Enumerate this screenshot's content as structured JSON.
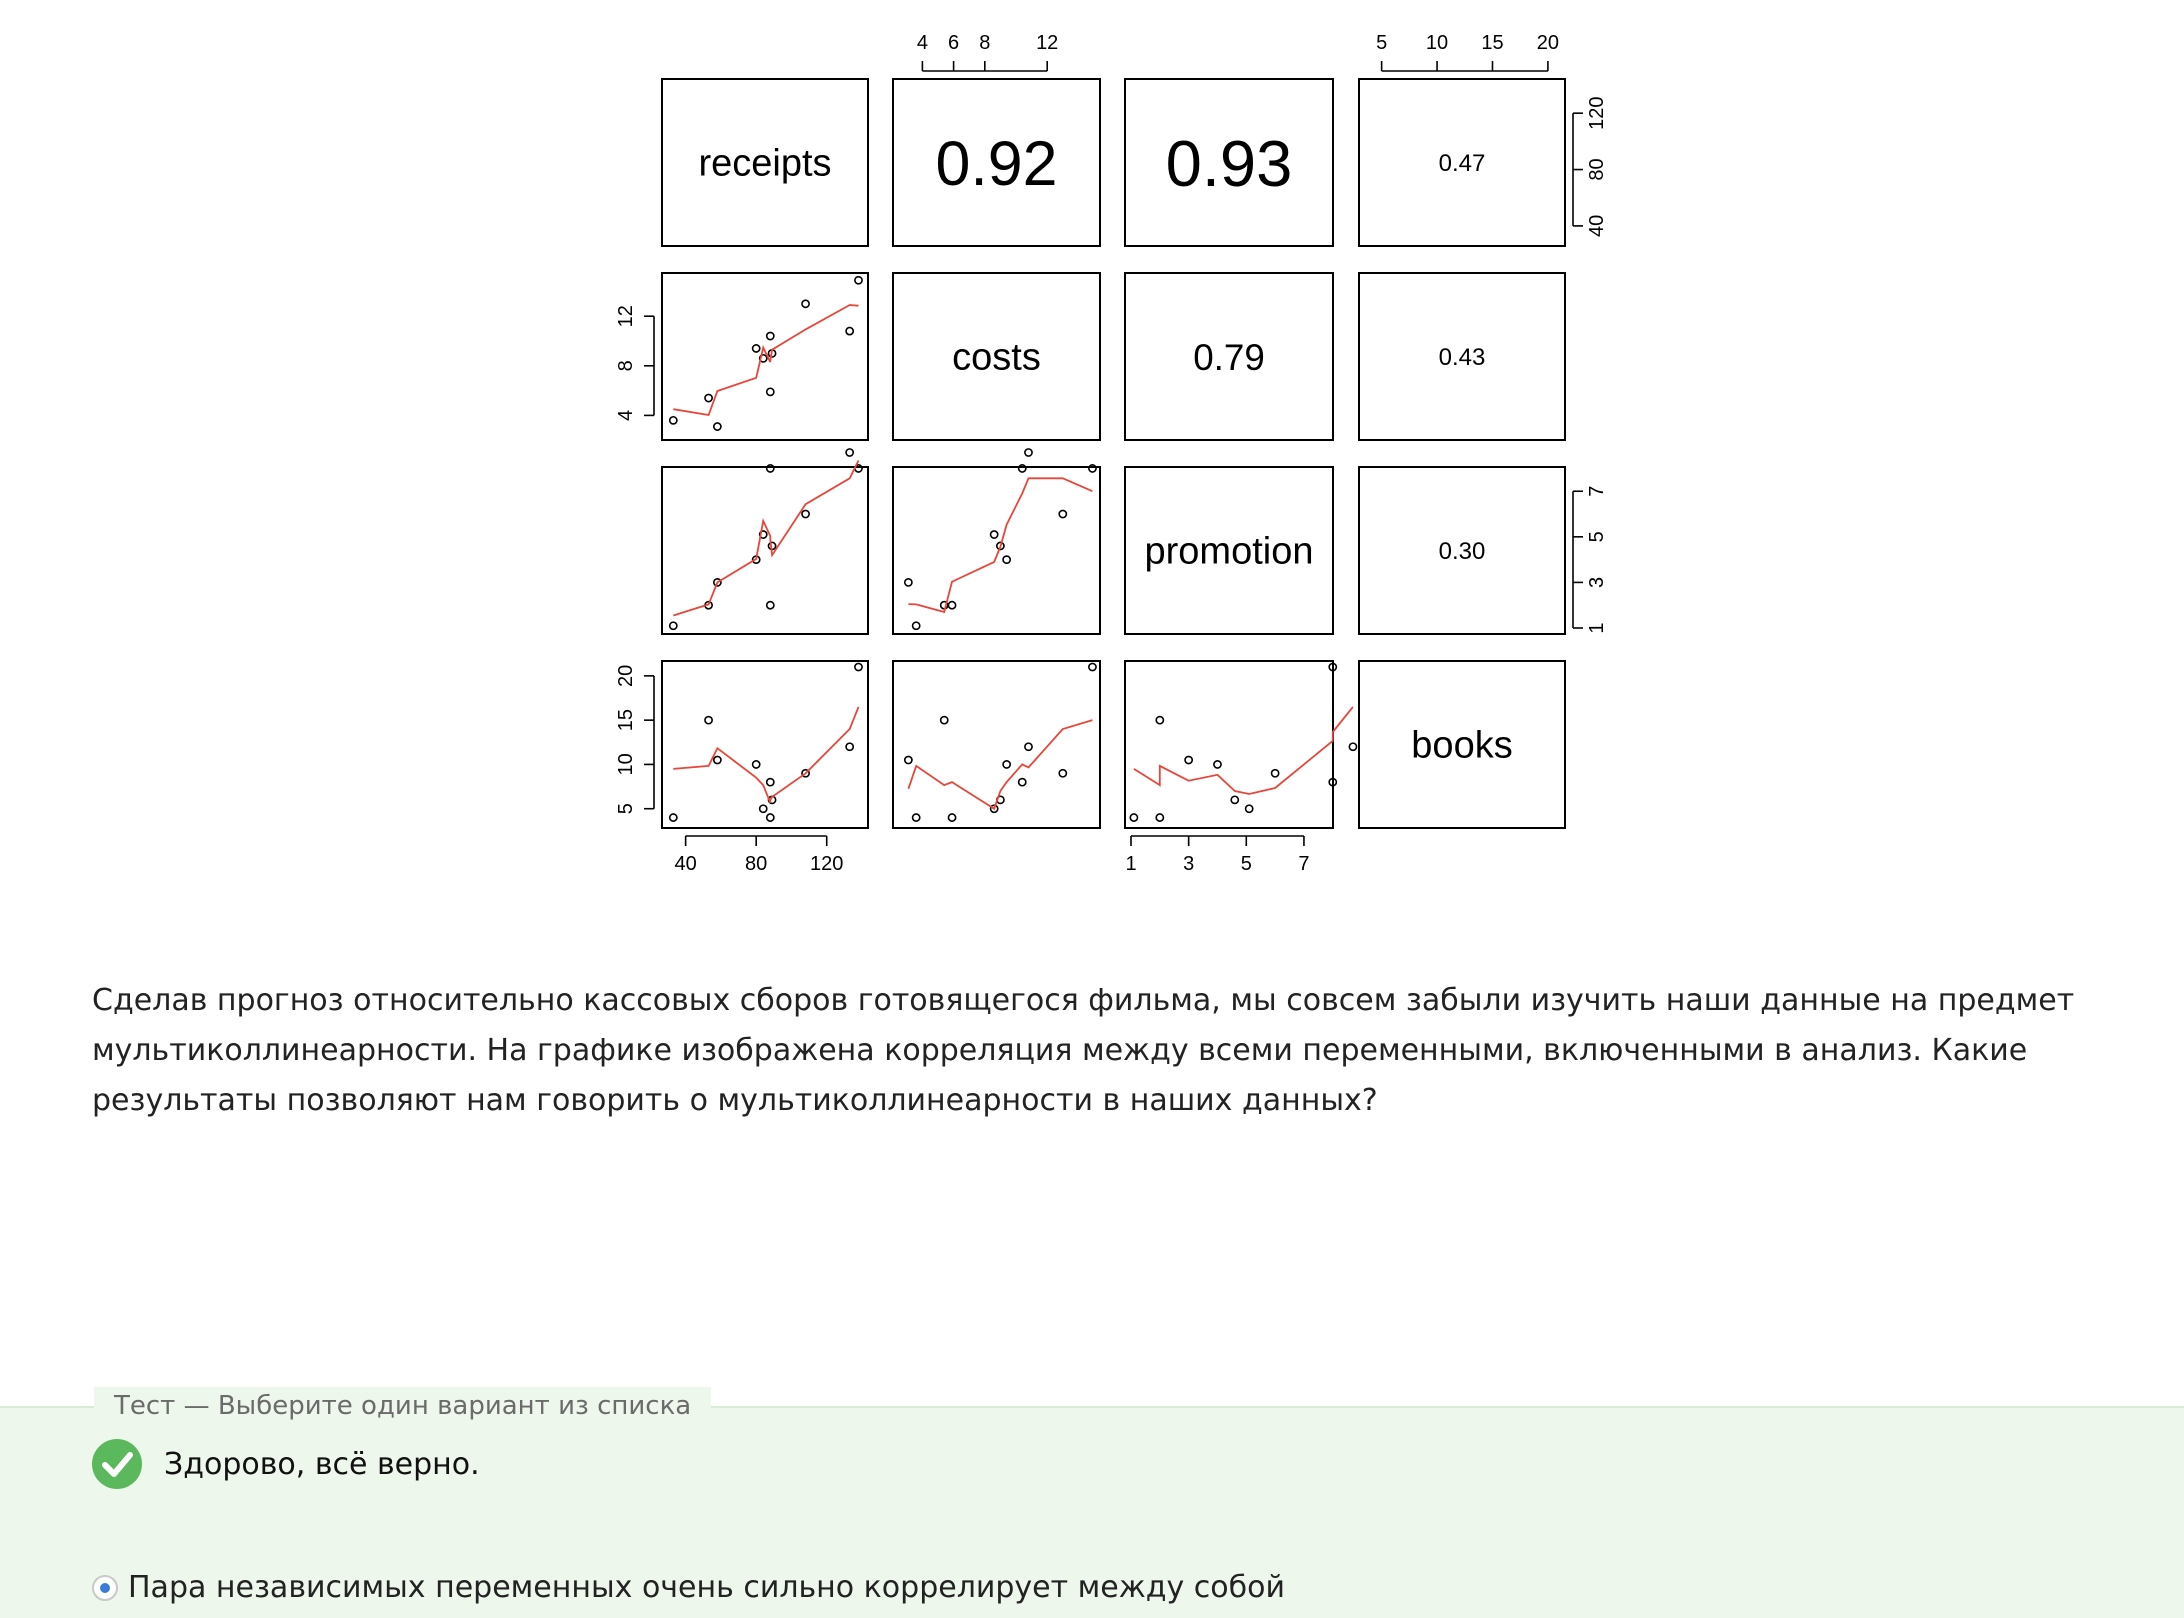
{
  "chart_data": {
    "type": "scatter-matrix",
    "variables": [
      "receipts",
      "costs",
      "promotion",
      "books"
    ],
    "correlations": [
      {
        "pair": [
          "receipts",
          "costs"
        ],
        "label": "0.92"
      },
      {
        "pair": [
          "receipts",
          "promotion"
        ],
        "label": "0.93"
      },
      {
        "pair": [
          "receipts",
          "books"
        ],
        "label": "0.47"
      },
      {
        "pair": [
          "costs",
          "promotion"
        ],
        "label": "0.79"
      },
      {
        "pair": [
          "costs",
          "books"
        ],
        "label": "0.43"
      },
      {
        "pair": [
          "promotion",
          "books"
        ],
        "label": "0.30"
      }
    ],
    "axes": {
      "receipts": {
        "range": [
          30,
          140
        ],
        "ticks": [
          "40",
          "80",
          "120"
        ]
      },
      "costs": {
        "range": [
          2.5,
          15
        ],
        "ticks": [
          "4",
          "6",
          "8",
          "12"
        ],
        "left_ticks": [
          "4",
          "8",
          "12"
        ]
      },
      "promotion": {
        "range": [
          1,
          7.8
        ],
        "ticks": [
          "1",
          "3",
          "5",
          "7"
        ]
      },
      "books": {
        "range": [
          3.5,
          21
        ],
        "ticks": [
          "5",
          "10",
          "15",
          "20"
        ]
      }
    },
    "observations": {
      "receipts": [
        33,
        53,
        58,
        80,
        84,
        88,
        89,
        108,
        133,
        138,
        88
      ],
      "costs": [
        3.6,
        5.4,
        3.1,
        9.4,
        8.6,
        10.4,
        9.0,
        13.0,
        10.8,
        14.9,
        5.9
      ],
      "promotion": [
        1.1,
        2.0,
        3.0,
        4.0,
        5.1,
        8.0,
        4.6,
        6.0,
        8.7,
        8.0,
        2.0
      ],
      "books": [
        4.0,
        15.0,
        10.5,
        10.0,
        5.0,
        8.0,
        6.0,
        9.0,
        12.0,
        21.0,
        4.0
      ]
    },
    "smoother_color": "#e8463a",
    "point_color": "#000000"
  },
  "question": {
    "text": "Сделав прогноз относительно кассовых сборов готовящегося фильма, мы совсем забыли изучить наши данные на предмет мультиколлинеарности.  На графике изображена корреляция между всеми переменными, включенными в анализ. Какие результаты позволяют нам говорить о мультиколлинеарности в наших данных?"
  },
  "quiz": {
    "type_label": "Тест — Выберите один вариант из списка",
    "feedback": "Здорово, всё верно.",
    "selected_option": "Пара независимых переменных очень сильно коррелирует между собой"
  },
  "colors": {
    "feedback_bg": "#edf7ec",
    "check": "#5cb85c",
    "radio_selected": "#3a7bd5"
  }
}
